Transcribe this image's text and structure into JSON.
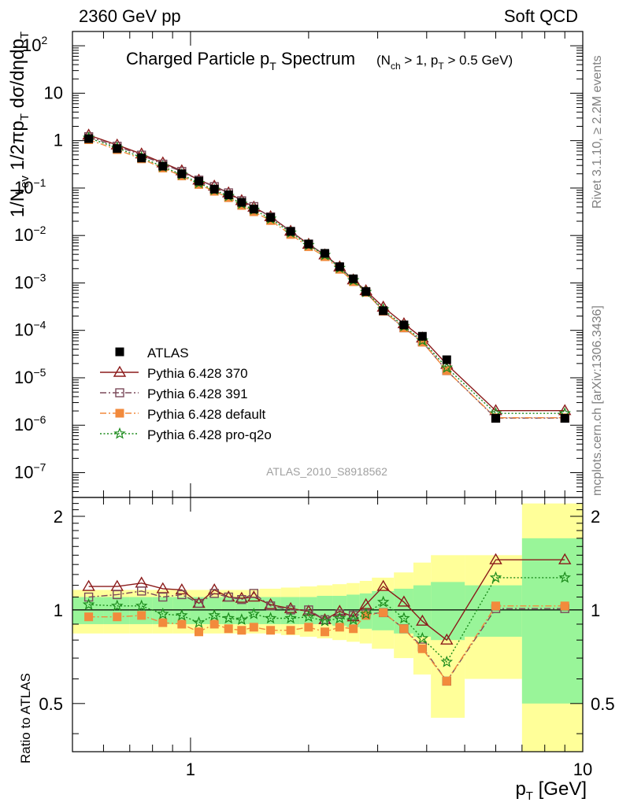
{
  "header": {
    "energy_label": "2360 GeV pp",
    "category_label": "Soft QCD"
  },
  "chart_data": {
    "type": "scatter",
    "title_main": "Charged Particle p",
    "title_main_sub": "T",
    "title_main_tail": " Spectrum",
    "title_cut_parts": [
      "(N",
      "ch",
      " > 1, p",
      "T",
      " > 0.5 GeV)"
    ],
    "ylabel_parts": [
      "1/N",
      "ev",
      " 1/2πp",
      "T",
      " dσ/dηdp",
      "T"
    ],
    "xlabel_parts": [
      "p",
      "T",
      "  [GeV]"
    ],
    "ratio_ylabel": "Ratio to ATLAS",
    "analysis_tag": "ATLAS_2010_S8918562",
    "side_rivet": "Rivet 3.1.10, ≥ 2.2M events",
    "side_mcplots": "mcplots.cern.ch [arXiv:1306.3436]",
    "x_scale": "log",
    "xlim": [
      0.5,
      10
    ],
    "ylim_main": [
      3e-08,
      200
    ],
    "ylim_ratio": [
      0.35,
      2.3
    ],
    "x_ticks": [
      {
        "v": 1,
        "label": "1"
      },
      {
        "v": 10,
        "label": "10"
      }
    ],
    "y_ticks_main": [
      {
        "e": -7,
        "label": "10",
        "exp": "−7"
      },
      {
        "e": -6,
        "label": "10",
        "exp": "−6"
      },
      {
        "e": -5,
        "label": "10",
        "exp": "−5"
      },
      {
        "e": -4,
        "label": "10",
        "exp": "−4"
      },
      {
        "e": -3,
        "label": "10",
        "exp": "−3"
      },
      {
        "e": -2,
        "label": "10",
        "exp": "−2"
      },
      {
        "e": -1,
        "label": "10",
        "exp": "−1"
      },
      {
        "e": 0,
        "label": "1",
        "exp": ""
      },
      {
        "e": 1,
        "label": "10",
        "exp": ""
      },
      {
        "e": 2,
        "label": "10",
        "exp": "2"
      }
    ],
    "y_ticks_ratio": [
      {
        "v": 0.5,
        "label": "0.5"
      },
      {
        "v": 1,
        "label": "1"
      },
      {
        "v": 2,
        "label": "2"
      }
    ],
    "x": [
      0.55,
      0.65,
      0.75,
      0.85,
      0.95,
      1.05,
      1.15,
      1.25,
      1.35,
      1.45,
      1.6,
      1.8,
      2.0,
      2.2,
      2.4,
      2.6,
      2.8,
      3.1,
      3.5,
      3.9,
      4.5,
      6.0,
      9.0
    ],
    "x_edges": [
      0.5,
      0.6,
      0.7,
      0.8,
      0.9,
      1.0,
      1.1,
      1.2,
      1.3,
      1.4,
      1.5,
      1.7,
      1.9,
      2.1,
      2.3,
      2.5,
      2.7,
      2.9,
      3.3,
      3.7,
      4.1,
      5.0,
      7.0,
      11.0
    ],
    "atlas_values": [
      1.1,
      0.68,
      0.43,
      0.29,
      0.2,
      0.14,
      0.095,
      0.072,
      0.05,
      0.036,
      0.024,
      0.0122,
      0.0066,
      0.0042,
      0.0022,
      0.00122,
      0.00066,
      0.00026,
      0.00013,
      7.5e-05,
      2.4e-05,
      1.4e-06,
      1.4e-06
    ],
    "ratio_band_stat": [
      [
        0.9,
        1.1
      ],
      [
        0.9,
        1.1
      ],
      [
        0.9,
        1.1
      ],
      [
        0.9,
        1.1
      ],
      [
        0.9,
        1.1
      ],
      [
        0.9,
        1.1
      ],
      [
        0.9,
        1.1
      ],
      [
        0.9,
        1.1
      ],
      [
        0.9,
        1.1
      ],
      [
        0.9,
        1.1
      ],
      [
        0.9,
        1.1
      ],
      [
        0.9,
        1.1
      ],
      [
        0.9,
        1.1
      ],
      [
        0.9,
        1.11
      ],
      [
        0.89,
        1.11
      ],
      [
        0.88,
        1.12
      ],
      [
        0.87,
        1.13
      ],
      [
        0.86,
        1.15
      ],
      [
        0.84,
        1.17
      ],
      [
        0.82,
        1.2
      ],
      [
        0.8,
        1.23
      ],
      [
        0.82,
        1.2
      ],
      [
        0.5,
        1.7
      ]
    ],
    "ratio_band_syst": [
      [
        0.84,
        1.16
      ],
      [
        0.84,
        1.16
      ],
      [
        0.84,
        1.16
      ],
      [
        0.84,
        1.16
      ],
      [
        0.84,
        1.16
      ],
      [
        0.84,
        1.16
      ],
      [
        0.84,
        1.16
      ],
      [
        0.84,
        1.16
      ],
      [
        0.84,
        1.16
      ],
      [
        0.84,
        1.16
      ],
      [
        0.84,
        1.17
      ],
      [
        0.83,
        1.18
      ],
      [
        0.82,
        1.19
      ],
      [
        0.81,
        1.2
      ],
      [
        0.8,
        1.21
      ],
      [
        0.79,
        1.22
      ],
      [
        0.78,
        1.24
      ],
      [
        0.75,
        1.27
      ],
      [
        0.7,
        1.32
      ],
      [
        0.62,
        1.42
      ],
      [
        0.45,
        1.5
      ],
      [
        0.6,
        1.5
      ],
      [
        0.35,
        2.2
      ]
    ],
    "series": [
      {
        "name": "ATLAS",
        "color": "#000000",
        "marker": "square-filled",
        "line": "none",
        "values": [
          1.1,
          0.68,
          0.43,
          0.29,
          0.2,
          0.14,
          0.095,
          0.072,
          0.05,
          0.036,
          0.024,
          0.0122,
          0.0066,
          0.0042,
          0.0022,
          0.00122,
          0.00066,
          0.00026,
          0.00013,
          7.5e-05,
          2.4e-05,
          1.4e-06,
          1.4e-06
        ]
      },
      {
        "name": "Pythia 6.428 370",
        "color": "#8b1a1a",
        "marker": "triangle-open",
        "line": "solid",
        "ratio": [
          1.19,
          1.19,
          1.22,
          1.17,
          1.16,
          1.05,
          1.16,
          1.1,
          1.09,
          1.1,
          1.04,
          1.01,
          0.99,
          0.93,
          0.99,
          0.95,
          1.04,
          1.19,
          1.06,
          0.92,
          0.8,
          1.45,
          1.45
        ]
      },
      {
        "name": "Pythia 6.428 391",
        "color": "#7a4a5a",
        "marker": "square-open",
        "line": "dashdot",
        "ratio": [
          1.1,
          1.12,
          1.15,
          1.1,
          1.12,
          1.05,
          1.13,
          1.1,
          1.08,
          1.13,
          1.03,
          1.0,
          1.0,
          0.93,
          0.97,
          0.96,
          0.97,
          0.98,
          0.87,
          0.76,
          0.59,
          1.01,
          1.01
        ]
      },
      {
        "name": "Pythia 6.428 default",
        "color": "#f28a3c",
        "marker": "square-filled",
        "line": "dashdot",
        "ratio": [
          0.95,
          0.95,
          0.96,
          0.91,
          0.9,
          0.85,
          0.9,
          0.87,
          0.86,
          0.88,
          0.86,
          0.86,
          0.88,
          0.85,
          0.88,
          0.87,
          0.96,
          0.98,
          0.87,
          0.75,
          0.59,
          1.03,
          1.03
        ]
      },
      {
        "name": "Pythia 6.428 pro-q2o",
        "color": "#1a8a1a",
        "marker": "star-open",
        "line": "dotted",
        "ratio": [
          1.04,
          1.03,
          1.03,
          0.97,
          0.96,
          0.91,
          0.96,
          0.94,
          0.93,
          0.97,
          0.94,
          0.94,
          0.95,
          0.92,
          0.94,
          0.93,
          0.97,
          1.06,
          0.94,
          0.81,
          0.68,
          1.27,
          1.27
        ]
      }
    ]
  }
}
